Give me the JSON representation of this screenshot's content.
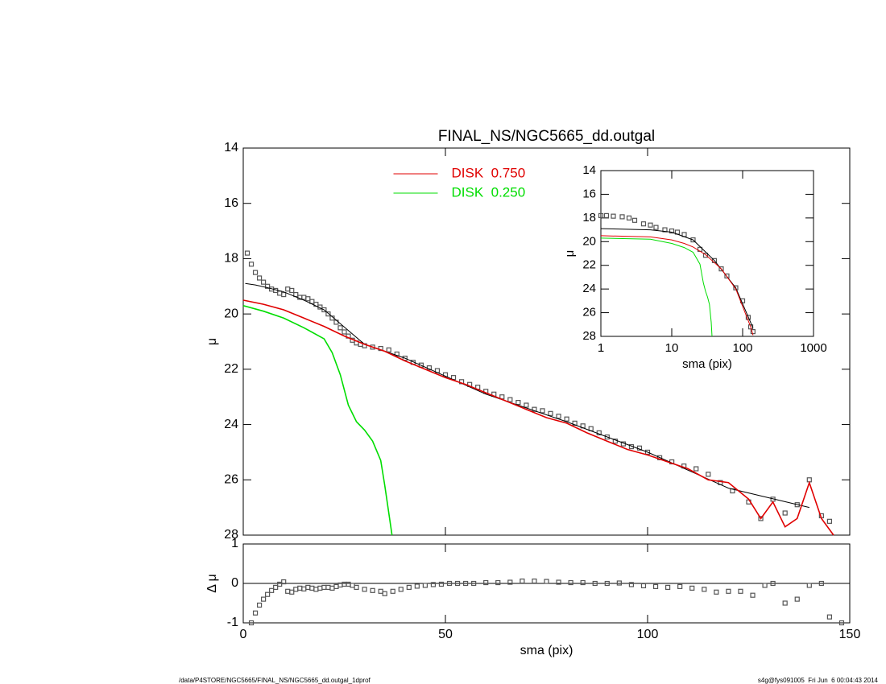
{
  "chart_data": [
    {
      "type": "line",
      "title": "FINAL_NS/NGC5665_dd.outgal",
      "ylabel": "μ",
      "xlim": [
        0,
        150
      ],
      "xticks": [
        0,
        50,
        100,
        150
      ],
      "xtick_labels": false,
      "ylim": [
        28,
        14
      ],
      "yticks": [
        14,
        16,
        18,
        20,
        22,
        24,
        26,
        28
      ],
      "legend": "upper center",
      "series": [
        {
          "style": "points",
          "color": "#555555",
          "x": [
            1,
            2,
            3,
            4,
            5,
            6,
            7,
            8,
            9,
            10,
            11,
            12,
            13,
            14,
            15,
            16,
            17,
            18,
            19,
            20,
            21,
            22,
            23,
            24,
            25,
            26,
            27,
            28,
            29,
            30,
            32,
            34,
            36,
            38,
            40,
            42,
            44,
            46,
            48,
            50,
            52,
            54,
            56,
            58,
            60,
            62,
            64,
            66,
            68,
            70,
            72,
            74,
            76,
            78,
            80,
            82,
            84,
            86,
            88,
            90,
            92,
            94,
            96,
            98,
            100,
            103,
            106,
            109,
            112,
            115,
            118,
            121,
            125,
            128,
            131,
            134,
            137,
            140,
            143,
            145
          ],
          "values": [
            17.8,
            18.2,
            18.5,
            18.7,
            18.85,
            19.0,
            19.1,
            19.15,
            19.25,
            19.3,
            19.1,
            19.15,
            19.3,
            19.4,
            19.4,
            19.45,
            19.55,
            19.65,
            19.75,
            19.85,
            20.0,
            20.15,
            20.3,
            20.5,
            20.65,
            20.8,
            20.95,
            21.05,
            21.1,
            21.15,
            21.2,
            21.25,
            21.3,
            21.45,
            21.6,
            21.75,
            21.85,
            21.95,
            22.05,
            22.2,
            22.3,
            22.45,
            22.55,
            22.65,
            22.8,
            22.9,
            23.0,
            23.1,
            23.2,
            23.3,
            23.45,
            23.5,
            23.6,
            23.7,
            23.8,
            23.95,
            24.05,
            24.15,
            24.3,
            24.45,
            24.6,
            24.7,
            24.8,
            24.85,
            25.0,
            25.2,
            25.35,
            25.5,
            25.6,
            25.8,
            26.1,
            26.4,
            26.8,
            27.4,
            26.7,
            27.2,
            26.9,
            26.0,
            27.3,
            27.5
          ]
        },
        {
          "style": "line",
          "color": "#000000",
          "x": [
            0.5,
            3,
            6,
            10,
            15,
            20,
            30,
            40,
            60,
            80,
            100,
            120,
            140
          ],
          "values": [
            18.9,
            18.95,
            19.05,
            19.2,
            19.5,
            19.85,
            21.1,
            21.6,
            22.9,
            23.9,
            25.0,
            26.3,
            27.0
          ]
        },
        {
          "style": "line",
          "name": "DISK  0.750",
          "color": "#e00000",
          "x": [
            0,
            5,
            10,
            15,
            20,
            25,
            30,
            35,
            40,
            45,
            50,
            55,
            60,
            65,
            70,
            75,
            80,
            85,
            90,
            95,
            100,
            105,
            110,
            115,
            120,
            125,
            128,
            131,
            134,
            137,
            140,
            143,
            146
          ],
          "values": [
            19.5,
            19.65,
            19.85,
            20.15,
            20.45,
            20.8,
            21.1,
            21.35,
            21.7,
            22.0,
            22.3,
            22.55,
            22.85,
            23.15,
            23.45,
            23.75,
            23.95,
            24.3,
            24.6,
            24.9,
            25.1,
            25.35,
            25.6,
            26.0,
            26.1,
            26.7,
            27.4,
            26.8,
            27.7,
            27.4,
            26.1,
            27.4,
            28.0
          ]
        },
        {
          "style": "line",
          "name": "DISK  0.250",
          "color": "#00dd00",
          "x": [
            0,
            5,
            10,
            15,
            20,
            22,
            24,
            26,
            28,
            30,
            32,
            34,
            35,
            36,
            36.8
          ],
          "values": [
            19.7,
            19.9,
            20.15,
            20.5,
            20.9,
            21.4,
            22.2,
            23.3,
            23.9,
            24.2,
            24.6,
            25.3,
            26.2,
            27.2,
            28.0
          ]
        }
      ]
    },
    {
      "type": "line",
      "xscale": "log",
      "xlabel": "sma (pix)",
      "ylabel": "μ",
      "xlim": [
        1,
        1000
      ],
      "xticks": [
        1,
        10,
        100,
        1000
      ],
      "ylim": [
        28,
        14
      ],
      "yticks": [
        14,
        16,
        18,
        20,
        22,
        24,
        26,
        28
      ],
      "series": [
        {
          "style": "points",
          "color": "#555555",
          "x": [
            1,
            1.2,
            1.5,
            2,
            2.5,
            3,
            4,
            5,
            6,
            8,
            10,
            12,
            15,
            20,
            25,
            30,
            40,
            50,
            60,
            80,
            100,
            120,
            130,
            140
          ],
          "values": [
            17.8,
            17.8,
            17.85,
            17.9,
            18.0,
            18.2,
            18.5,
            18.6,
            18.8,
            19.0,
            19.1,
            19.2,
            19.4,
            19.85,
            20.65,
            21.15,
            21.6,
            22.3,
            22.9,
            23.9,
            25.0,
            26.4,
            27.2,
            27.6
          ]
        },
        {
          "style": "line",
          "color": "#000000",
          "x": [
            1,
            5,
            10,
            20,
            40,
            80,
            140
          ],
          "values": [
            18.9,
            19.0,
            19.2,
            19.85,
            21.6,
            23.9,
            27.3
          ]
        },
        {
          "style": "line",
          "color": "#e00000",
          "x": [
            1,
            5,
            10,
            15,
            20,
            30,
            50,
            80,
            130,
            140
          ],
          "values": [
            19.5,
            19.6,
            19.85,
            20.15,
            20.45,
            21.1,
            22.3,
            24.0,
            27.2,
            27.9
          ]
        },
        {
          "style": "line",
          "color": "#00dd00",
          "x": [
            1,
            5,
            10,
            15,
            20,
            25,
            28,
            30,
            32,
            34,
            36,
            37
          ],
          "values": [
            19.7,
            19.8,
            20.15,
            20.5,
            20.9,
            21.9,
            23.5,
            24.2,
            24.7,
            25.3,
            26.8,
            28.0
          ]
        }
      ]
    },
    {
      "type": "scatter",
      "xlabel": "sma (pix)",
      "ylabel": "Δ μ",
      "xlim": [
        0,
        150
      ],
      "xticks": [
        0,
        50,
        100,
        150
      ],
      "ylim": [
        -1,
        1
      ],
      "yticks": [
        -1,
        0,
        1
      ],
      "hline": 0,
      "series": [
        {
          "style": "points",
          "color": "#555555",
          "x": [
            2,
            3,
            4,
            5,
            6,
            7,
            8,
            9,
            10,
            11,
            12,
            13,
            14,
            15,
            16,
            17,
            18,
            19,
            20,
            21,
            22,
            23,
            24,
            25,
            26,
            27,
            28,
            30,
            32,
            34,
            35,
            37,
            39,
            41,
            43,
            45,
            47,
            49,
            51,
            53,
            55,
            57,
            60,
            63,
            66,
            69,
            72,
            75,
            78,
            81,
            84,
            87,
            90,
            93,
            96,
            99,
            102,
            105,
            108,
            111,
            114,
            117,
            120,
            123,
            126,
            129,
            131,
            134,
            137,
            140,
            143,
            145,
            148
          ],
          "values": [
            -1.0,
            -0.75,
            -0.55,
            -0.4,
            -0.28,
            -0.18,
            -0.1,
            -0.02,
            0.04,
            -0.2,
            -0.22,
            -0.15,
            -0.12,
            -0.14,
            -0.1,
            -0.12,
            -0.15,
            -0.12,
            -0.1,
            -0.1,
            -0.12,
            -0.08,
            -0.04,
            -0.02,
            -0.02,
            -0.05,
            -0.1,
            -0.15,
            -0.18,
            -0.2,
            -0.26,
            -0.2,
            -0.15,
            -0.1,
            -0.07,
            -0.05,
            -0.03,
            -0.02,
            0,
            0,
            0,
            0,
            0.02,
            0.02,
            0.03,
            0.06,
            0.06,
            0.05,
            0.03,
            0.02,
            0.02,
            0,
            0,
            0.01,
            -0.03,
            -0.06,
            -0.08,
            -0.1,
            -0.08,
            -0.12,
            -0.15,
            -0.22,
            -0.2,
            -0.2,
            -0.3,
            -0.05,
            0.0,
            -0.5,
            -0.4,
            -0.05,
            0.0,
            -0.85,
            -1.0
          ]
        }
      ]
    }
  ],
  "footer": {
    "left": "/data/P4STORE/NGC5665/FINAL_NS/NGC5665_dd.outgal_1dprof",
    "right": "s4g@fys091005  Fri Jun  6 00:04:43 2014"
  }
}
